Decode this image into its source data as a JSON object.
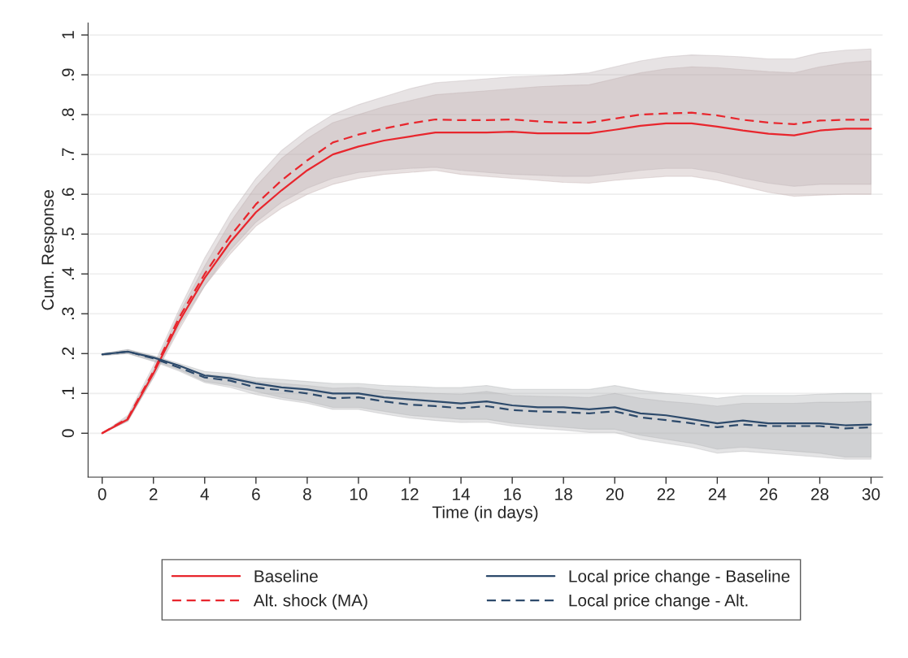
{
  "chart_data": {
    "type": "line",
    "xlabel": "Time (in days)",
    "ylabel": "Cum. Response",
    "x": [
      0,
      1,
      2,
      3,
      4,
      5,
      6,
      7,
      8,
      9,
      10,
      11,
      12,
      13,
      14,
      15,
      16,
      17,
      18,
      19,
      20,
      21,
      22,
      23,
      24,
      25,
      26,
      27,
      28,
      29,
      30
    ],
    "xlim": [
      -0.55,
      30.45
    ],
    "xticks": [
      0,
      2,
      4,
      6,
      8,
      10,
      12,
      14,
      16,
      18,
      20,
      22,
      24,
      26,
      28,
      30
    ],
    "ylim": [
      -0.11,
      1.03
    ],
    "yticks": [
      0,
      {
        "value": 0.1,
        "label": ".1"
      },
      {
        "value": 0.2,
        "label": ".2"
      },
      {
        "value": 0.3,
        "label": ".3"
      },
      {
        "value": 0.4,
        "label": ".4"
      },
      {
        "value": 0.5,
        "label": ".5"
      },
      {
        "value": 0.6,
        "label": ".6"
      },
      {
        "value": 0.7,
        "label": ".7"
      },
      {
        "value": 0.8,
        "label": ".8"
      },
      {
        "value": 0.9,
        "label": ".9"
      },
      1
    ],
    "grid": "y",
    "legend": "bottom",
    "marker": "none",
    "series": [
      {
        "name": "Baseline",
        "color": "#e8262d",
        "line_style": "solid",
        "values": [
          0,
          0.035,
          0.15,
          0.28,
          0.39,
          0.48,
          0.555,
          0.61,
          0.66,
          0.7,
          0.72,
          0.735,
          0.745,
          0.755,
          0.755,
          0.755,
          0.757,
          0.753,
          0.753,
          0.753,
          0.762,
          0.772,
          0.778,
          0.778,
          0.77,
          0.76,
          0.752,
          0.748,
          0.76,
          0.765,
          0.765
        ],
        "upper": [
          0,
          0.04,
          0.16,
          0.3,
          0.42,
          0.53,
          0.62,
          0.69,
          0.74,
          0.78,
          0.8,
          0.82,
          0.835,
          0.85,
          0.855,
          0.86,
          0.865,
          0.87,
          0.873,
          0.875,
          0.89,
          0.905,
          0.915,
          0.92,
          0.918,
          0.913,
          0.908,
          0.905,
          0.92,
          0.93,
          0.935
        ],
        "lower": [
          0,
          0.03,
          0.14,
          0.26,
          0.37,
          0.45,
          0.52,
          0.565,
          0.6,
          0.625,
          0.64,
          0.65,
          0.655,
          0.66,
          0.65,
          0.645,
          0.64,
          0.635,
          0.63,
          0.628,
          0.635,
          0.64,
          0.645,
          0.645,
          0.635,
          0.62,
          0.605,
          0.595,
          0.598,
          0.6,
          0.6
        ]
      },
      {
        "name": "Alt. shock (MA)",
        "color": "#e8262d",
        "line_style": "dashed",
        "values": [
          0,
          0.038,
          0.155,
          0.29,
          0.4,
          0.495,
          0.575,
          0.635,
          0.685,
          0.73,
          0.75,
          0.765,
          0.778,
          0.788,
          0.786,
          0.786,
          0.788,
          0.783,
          0.78,
          0.78,
          0.79,
          0.8,
          0.803,
          0.805,
          0.798,
          0.787,
          0.78,
          0.776,
          0.785,
          0.787,
          0.787
        ],
        "upper": [
          0,
          0.045,
          0.17,
          0.31,
          0.44,
          0.55,
          0.64,
          0.71,
          0.76,
          0.8,
          0.825,
          0.845,
          0.865,
          0.88,
          0.885,
          0.89,
          0.895,
          0.897,
          0.9,
          0.905,
          0.92,
          0.935,
          0.945,
          0.95,
          0.948,
          0.945,
          0.94,
          0.94,
          0.955,
          0.962,
          0.965
        ],
        "lower": [
          0,
          0.03,
          0.14,
          0.27,
          0.37,
          0.46,
          0.53,
          0.58,
          0.615,
          0.64,
          0.655,
          0.66,
          0.665,
          0.668,
          0.66,
          0.655,
          0.65,
          0.648,
          0.645,
          0.645,
          0.652,
          0.66,
          0.665,
          0.665,
          0.655,
          0.64,
          0.628,
          0.62,
          0.625,
          0.625,
          0.625
        ]
      },
      {
        "name": "Local price change - Baseline",
        "color": "#2d4a6b",
        "line_style": "solid",
        "values": [
          0.198,
          0.205,
          0.19,
          0.17,
          0.145,
          0.138,
          0.125,
          0.115,
          0.11,
          0.1,
          0.1,
          0.09,
          0.085,
          0.08,
          0.075,
          0.08,
          0.07,
          0.065,
          0.065,
          0.06,
          0.065,
          0.05,
          0.045,
          0.035,
          0.025,
          0.032,
          0.025,
          0.025,
          0.025,
          0.02,
          0.022
        ],
        "upper": [
          0.2,
          0.21,
          0.195,
          0.175,
          0.155,
          0.15,
          0.14,
          0.135,
          0.13,
          0.125,
          0.125,
          0.12,
          0.118,
          0.115,
          0.115,
          0.12,
          0.11,
          0.11,
          0.11,
          0.11,
          0.12,
          0.108,
          0.1,
          0.095,
          0.088,
          0.095,
          0.095,
          0.095,
          0.098,
          0.1,
          0.1
        ],
        "lower": [
          0.195,
          0.2,
          0.182,
          0.16,
          0.13,
          0.12,
          0.105,
          0.09,
          0.08,
          0.065,
          0.065,
          0.055,
          0.045,
          0.04,
          0.035,
          0.035,
          0.025,
          0.02,
          0.015,
          0.01,
          0.01,
          -0.005,
          -0.015,
          -0.025,
          -0.04,
          -0.035,
          -0.04,
          -0.045,
          -0.05,
          -0.06,
          -0.06
        ]
      },
      {
        "name": "Local price change - Alt.",
        "color": "#2d4a6b",
        "line_style": "dashed",
        "values": [
          0.198,
          0.205,
          0.188,
          0.165,
          0.14,
          0.132,
          0.115,
          0.108,
          0.1,
          0.088,
          0.09,
          0.08,
          0.072,
          0.068,
          0.063,
          0.068,
          0.058,
          0.055,
          0.053,
          0.05,
          0.055,
          0.04,
          0.033,
          0.025,
          0.015,
          0.022,
          0.018,
          0.018,
          0.018,
          0.012,
          0.015
        ],
        "upper": [
          0.2,
          0.21,
          0.193,
          0.17,
          0.148,
          0.142,
          0.13,
          0.125,
          0.12,
          0.113,
          0.115,
          0.108,
          0.103,
          0.1,
          0.098,
          0.105,
          0.095,
          0.093,
          0.092,
          0.09,
          0.1,
          0.088,
          0.08,
          0.075,
          0.068,
          0.075,
          0.075,
          0.075,
          0.078,
          0.078,
          0.08
        ],
        "lower": [
          0.195,
          0.2,
          0.18,
          0.156,
          0.127,
          0.115,
          0.097,
          0.085,
          0.075,
          0.06,
          0.06,
          0.048,
          0.038,
          0.032,
          0.027,
          0.028,
          0.018,
          0.012,
          0.008,
          0.002,
          0.002,
          -0.015,
          -0.025,
          -0.035,
          -0.05,
          -0.045,
          -0.05,
          -0.055,
          -0.06,
          -0.065,
          -0.065
        ]
      }
    ]
  }
}
